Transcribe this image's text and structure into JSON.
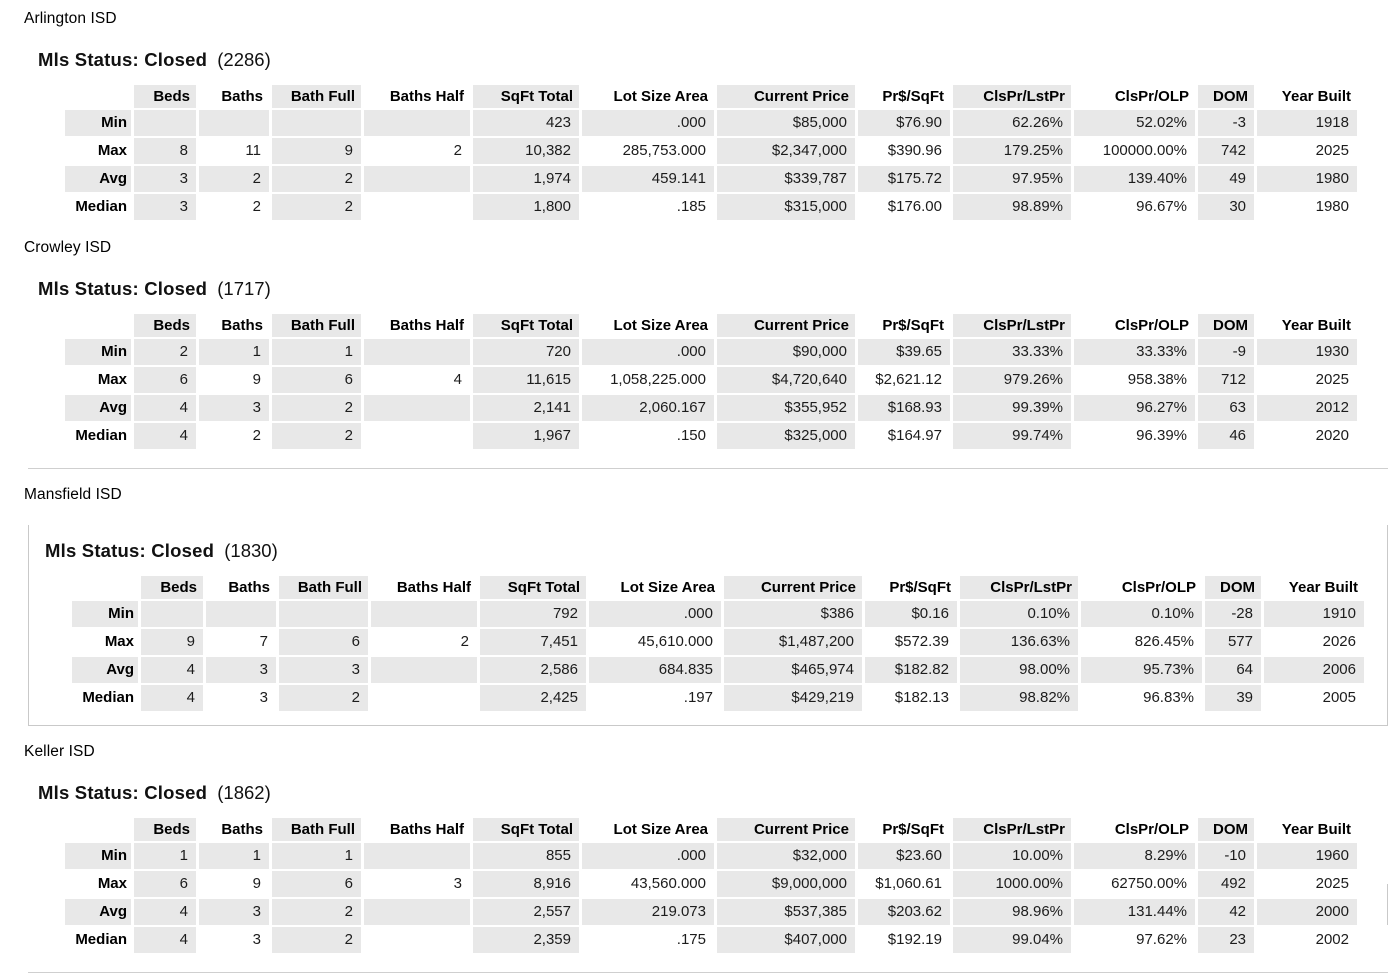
{
  "colors": {
    "shade": "#e8e8e8",
    "separator": "#cfcfcf",
    "text": "#1c1c1c"
  },
  "columns": [
    "Beds",
    "Baths",
    "Bath Full",
    "Baths Half",
    "SqFt Total",
    "Lot Size Area",
    "Current Price",
    "Pr$/SqFt",
    "ClsPr/LstPr",
    "ClsPr/OLP",
    "DOM",
    "Year Built"
  ],
  "row_labels": [
    "Min",
    "Max",
    "Avg",
    "Median"
  ],
  "sections": [
    {
      "district": "Arlington ISD",
      "status_label": "Mls Status: Closed",
      "count": "(2286)",
      "highlighted": false,
      "rows": [
        {
          "label": "Min",
          "values": [
            "",
            "",
            "",
            "",
            "423",
            ".000",
            "$85,000",
            "$76.90",
            "62.26%",
            "52.02%",
            "-3",
            "1918"
          ]
        },
        {
          "label": "Max",
          "values": [
            "8",
            "11",
            "9",
            "2",
            "10,382",
            "285,753.000",
            "$2,347,000",
            "$390.96",
            "179.25%",
            "100000.00%",
            "742",
            "2025"
          ]
        },
        {
          "label": "Avg",
          "values": [
            "3",
            "2",
            "2",
            "",
            "1,974",
            "459.141",
            "$339,787",
            "$175.72",
            "97.95%",
            "139.40%",
            "49",
            "1980"
          ]
        },
        {
          "label": "Median",
          "values": [
            "3",
            "2",
            "2",
            "",
            "1,800",
            ".185",
            "$315,000",
            "$176.00",
            "98.89%",
            "96.67%",
            "30",
            "1980"
          ]
        }
      ]
    },
    {
      "district": "Crowley ISD",
      "status_label": "Mls Status: Closed",
      "count": "(1717)",
      "highlighted": false,
      "rows": [
        {
          "label": "Min",
          "values": [
            "2",
            "1",
            "1",
            "",
            "720",
            ".000",
            "$90,000",
            "$39.65",
            "33.33%",
            "33.33%",
            "-9",
            "1930"
          ]
        },
        {
          "label": "Max",
          "values": [
            "6",
            "9",
            "6",
            "4",
            "11,615",
            "1,058,225.000",
            "$4,720,640",
            "$2,621.12",
            "979.26%",
            "958.38%",
            "712",
            "2025"
          ]
        },
        {
          "label": "Avg",
          "values": [
            "4",
            "3",
            "2",
            "",
            "2,141",
            "2,060.167",
            "$355,952",
            "$168.93",
            "99.39%",
            "96.27%",
            "63",
            "2012"
          ]
        },
        {
          "label": "Median",
          "values": [
            "4",
            "2",
            "2",
            "",
            "1,967",
            ".150",
            "$325,000",
            "$164.97",
            "99.74%",
            "96.39%",
            "46",
            "2020"
          ]
        }
      ]
    },
    {
      "district": "Mansfield ISD",
      "status_label": "Mls Status: Closed",
      "count": "(1830)",
      "highlighted": true,
      "rows": [
        {
          "label": "Min",
          "values": [
            "",
            "",
            "",
            "",
            "792",
            ".000",
            "$386",
            "$0.16",
            "0.10%",
            "0.10%",
            "-28",
            "1910"
          ]
        },
        {
          "label": "Max",
          "values": [
            "9",
            "7",
            "6",
            "2",
            "7,451",
            "45,610.000",
            "$1,487,200",
            "$572.39",
            "136.63%",
            "826.45%",
            "577",
            "2026"
          ]
        },
        {
          "label": "Avg",
          "values": [
            "4",
            "3",
            "3",
            "",
            "2,586",
            "684.835",
            "$465,974",
            "$182.82",
            "98.00%",
            "95.73%",
            "64",
            "2006"
          ]
        },
        {
          "label": "Median",
          "values": [
            "4",
            "3",
            "2",
            "",
            "2,425",
            ".197",
            "$429,219",
            "$182.13",
            "98.82%",
            "96.83%",
            "39",
            "2005"
          ]
        }
      ]
    },
    {
      "district": "Keller ISD",
      "status_label": "Mls Status: Closed",
      "count": "(1862)",
      "highlighted": false,
      "rows": [
        {
          "label": "Min",
          "values": [
            "1",
            "1",
            "1",
            "",
            "855",
            ".000",
            "$32,000",
            "$23.60",
            "10.00%",
            "8.29%",
            "-10",
            "1960"
          ]
        },
        {
          "label": "Max",
          "values": [
            "6",
            "9",
            "6",
            "3",
            "8,916",
            "43,560.000",
            "$9,000,000",
            "$1,060.61",
            "1000.00%",
            "62750.00%",
            "492",
            "2025"
          ]
        },
        {
          "label": "Avg",
          "values": [
            "4",
            "3",
            "2",
            "",
            "2,557",
            "219.073",
            "$537,385",
            "$203.62",
            "98.96%",
            "131.44%",
            "42",
            "2000"
          ]
        },
        {
          "label": "Median",
          "values": [
            "4",
            "3",
            "2",
            "",
            "2,359",
            ".175",
            "$407,000",
            "$192.19",
            "99.04%",
            "97.62%",
            "23",
            "2002"
          ]
        }
      ]
    }
  ]
}
